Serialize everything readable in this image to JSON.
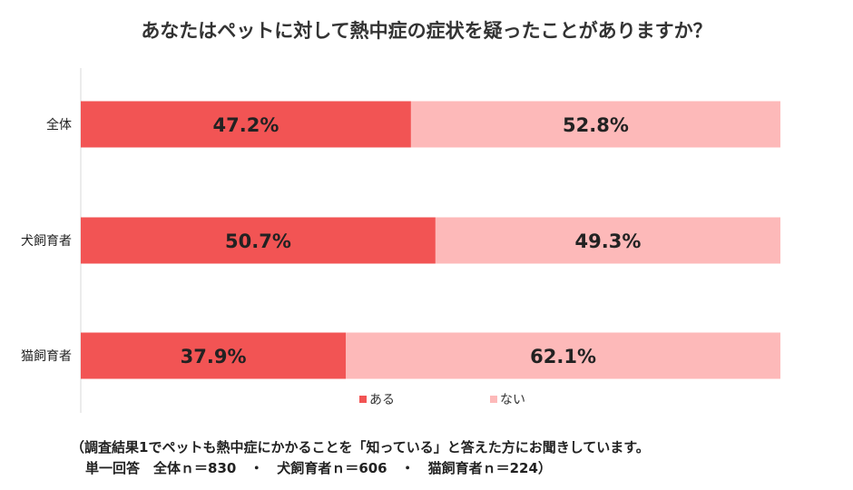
{
  "chart_data": {
    "type": "bar",
    "orientation": "horizontal-stacked-100",
    "title": "あなたはペットに対して熱中症の症状を疑ったことがありますか？",
    "categories": [
      "全体",
      "犬飼育者",
      "猫飼育者"
    ],
    "series": [
      {
        "name": "ある",
        "values": [
          47.2,
          50.7,
          37.9
        ],
        "labels": [
          "47.2%",
          "50.7%",
          "37.9%"
        ],
        "color": "#f25454"
      },
      {
        "name": "ない",
        "values": [
          52.8,
          49.3,
          62.1
        ],
        "labels": [
          "52.8%",
          "49.3%",
          "62.1%"
        ],
        "color": "#fdb9b9"
      }
    ],
    "xlim": [
      0,
      100
    ],
    "grid": false,
    "legend_position": "bottom"
  },
  "footnote": {
    "line1": "（調査結果1でペットも熱中症にかかることを「知っている」と答えた方にお聞きしています。",
    "line2": "単一回答　全体ｎ＝830　・　犬飼育者ｎ＝606　・　猫飼育者ｎ＝224）"
  }
}
